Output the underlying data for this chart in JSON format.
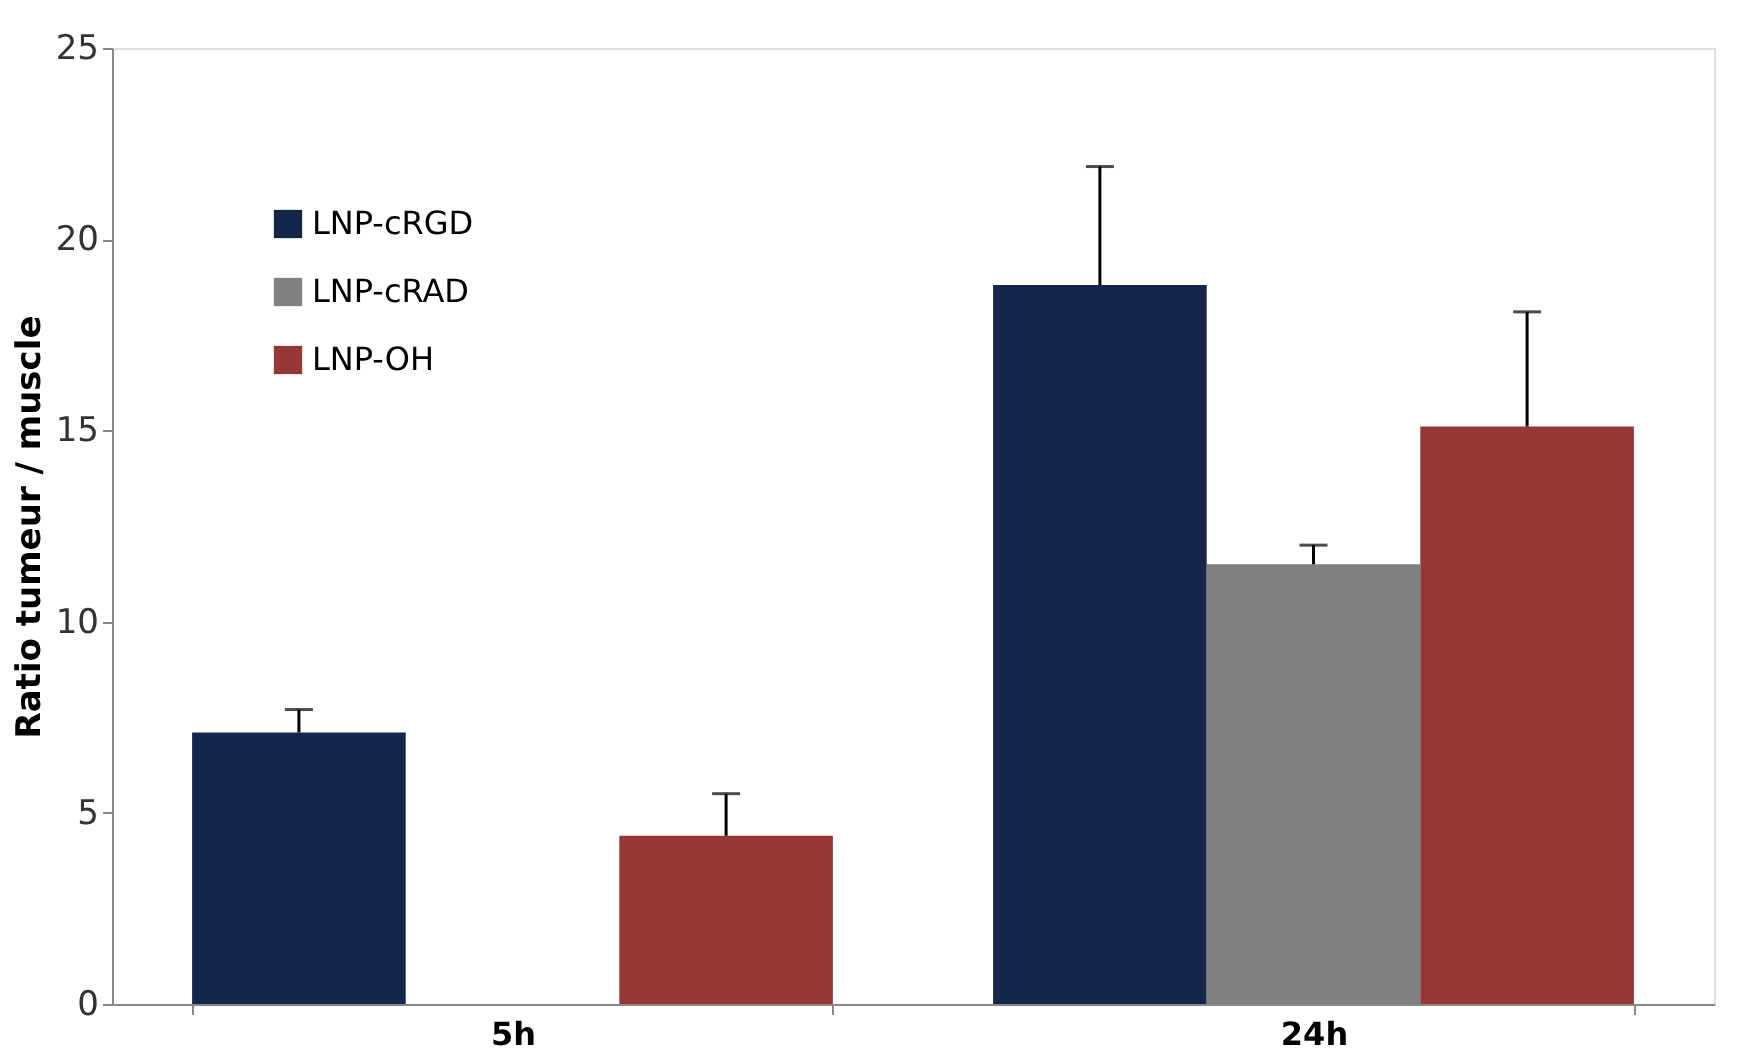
{
  "chart_data": {
    "type": "bar",
    "ylabel": "Ratio tumeur / muscle",
    "categories": [
      "5h",
      "24h"
    ],
    "series": [
      {
        "name": "LNP-cRGD",
        "color": "#14274a",
        "values": [
          7.1,
          18.8
        ],
        "errors": [
          [
            7.1,
            7.7
          ],
          [
            18.8,
            21.9
          ]
        ]
      },
      {
        "name": "LNP-cRAD",
        "color": "#808080",
        "values": [
          null,
          11.5
        ],
        "errors": [
          null,
          [
            11.5,
            12.0
          ]
        ]
      },
      {
        "name": "LNP-OH",
        "color": "#943735",
        "values": [
          4.4,
          15.1
        ],
        "errors": [
          [
            4.4,
            5.5
          ],
          [
            15.1,
            18.1
          ]
        ]
      }
    ],
    "ylim": [
      0,
      25
    ],
    "yticks": [
      0,
      5,
      10,
      15,
      20,
      25
    ],
    "grid": false,
    "legend": "top left"
  }
}
